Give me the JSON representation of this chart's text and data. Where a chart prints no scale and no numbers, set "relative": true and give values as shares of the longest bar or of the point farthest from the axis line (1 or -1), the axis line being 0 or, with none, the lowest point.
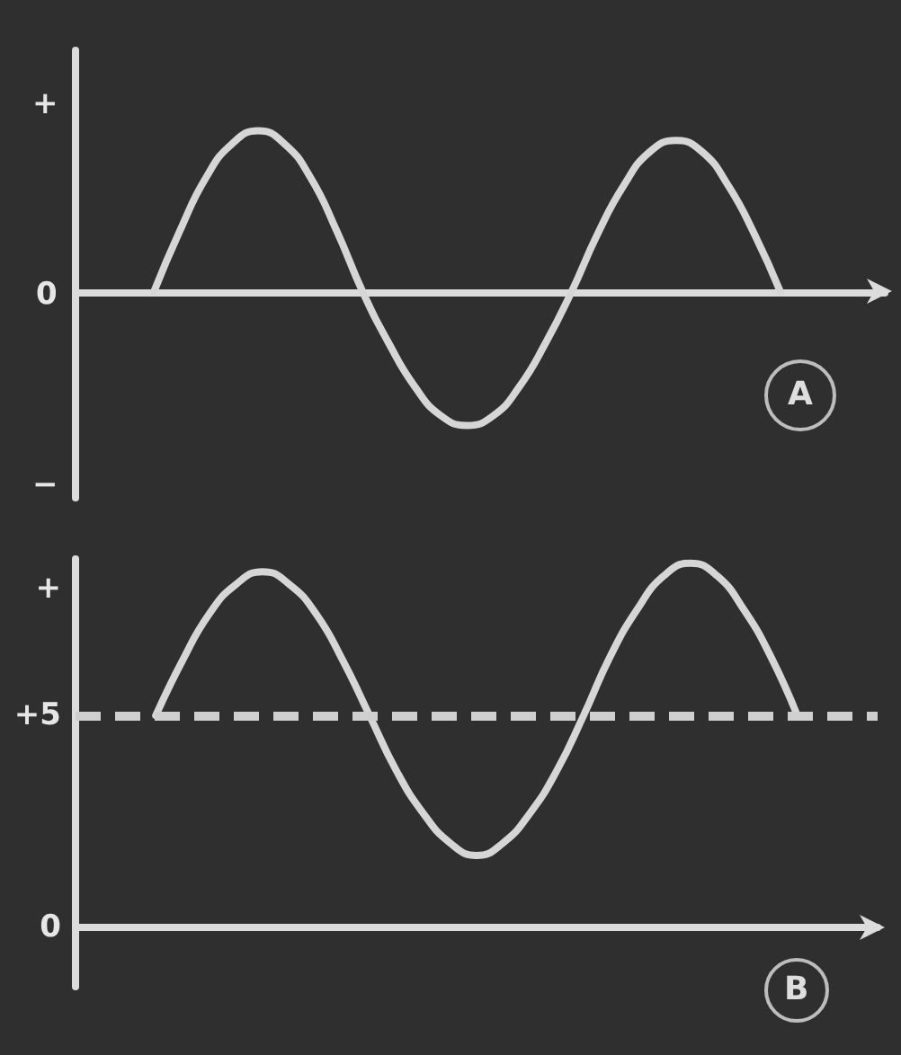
{
  "chart_data": [
    {
      "type": "line",
      "relative": true,
      "categories": [
        null,
        null,
        null,
        null,
        null,
        null,
        null,
        null,
        null,
        null,
        null,
        null,
        null,
        null,
        null,
        null,
        null,
        null,
        null,
        null,
        null,
        null,
        null,
        null,
        null,
        null,
        null,
        null,
        null,
        null,
        null,
        null
      ],
      "values": [
        null,
        null,
        null,
        0,
        0.38,
        0.71,
        0.92,
        1,
        0.92,
        0.71,
        0.38,
        0,
        -0.32,
        -0.59,
        -0.77,
        -0.83,
        -0.77,
        -0.59,
        -0.32,
        0,
        0.36,
        0.66,
        0.87,
        0.94,
        0.87,
        0.66,
        0.36,
        0,
        null,
        null,
        null,
        null
      ],
      "color": "#d6d6d6",
      "marker": "none",
      "line_style": "solid",
      "annotations": [
        "+",
        "0",
        "−",
        "A"
      ]
    },
    {
      "type": "line",
      "categories": [
        null,
        null,
        null,
        null,
        null,
        null,
        null,
        null,
        null,
        null,
        null,
        null,
        null,
        null,
        null,
        null,
        null,
        null,
        null,
        null,
        null,
        null,
        null,
        null,
        null,
        null,
        null,
        null,
        null,
        null,
        null
      ],
      "values": [
        null,
        null,
        null,
        5,
        6.3,
        7.4,
        8.1,
        8.4,
        8.1,
        7.4,
        6.3,
        5,
        3.7,
        2.7,
        2.0,
        1.7,
        2.0,
        2.7,
        3.7,
        5,
        6.4,
        7.5,
        8.3,
        8.6,
        8.3,
        7.5,
        6.4,
        5,
        null,
        null,
        null
      ],
      "color": "#d6d6d6",
      "ylim": [
        -1.4,
        8.7
      ],
      "yticks": [
        {
          "value": 8,
          "label": "+"
        },
        {
          "value": 5,
          "label": "+5"
        },
        0
      ],
      "marker": "none",
      "line_style": "solid",
      "ref_lines": [
        {
          "axis": "y",
          "value": 5,
          "color": "#cfcfcf",
          "line_style": "dashed"
        }
      ],
      "annotations": [
        "B"
      ]
    }
  ]
}
